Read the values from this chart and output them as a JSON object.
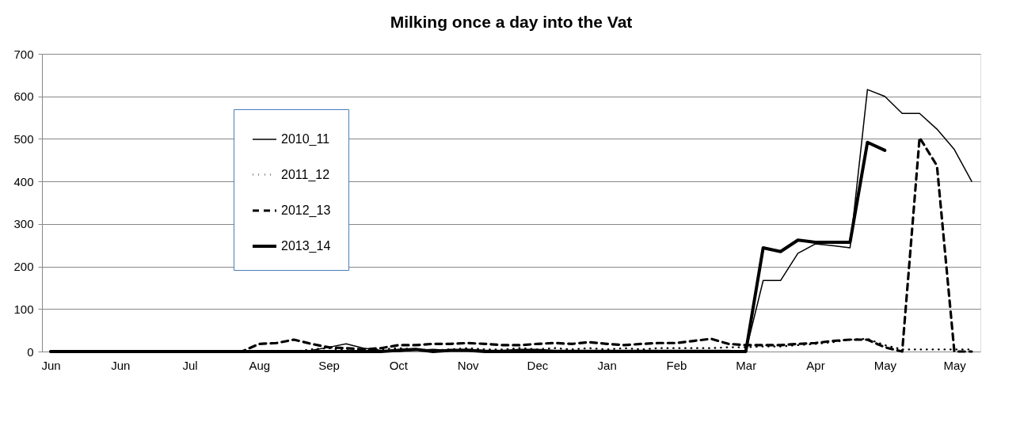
{
  "chart_data": {
    "type": "line",
    "title": "Milking once a day into the Vat",
    "categories": [
      "Jun",
      null,
      null,
      null,
      "Jun",
      null,
      null,
      null,
      "Jul",
      null,
      null,
      null,
      "Aug",
      null,
      null,
      null,
      "Sep",
      null,
      null,
      null,
      "Oct",
      null,
      null,
      null,
      "Nov",
      null,
      null,
      null,
      "Dec",
      null,
      null,
      null,
      "Jan",
      null,
      null,
      null,
      "Feb",
      null,
      null,
      null,
      "Mar",
      null,
      null,
      null,
      "Apr",
      null,
      null,
      null,
      "May",
      null,
      null,
      null,
      "May",
      null
    ],
    "series": [
      {
        "name": "2010_11",
        "color": "#000000",
        "line_style": "solid",
        "values": [
          0,
          0,
          0,
          0,
          0,
          0,
          0,
          0,
          0,
          0,
          0,
          0,
          0,
          0,
          0,
          3,
          10,
          18,
          8,
          3,
          0,
          3,
          5,
          3,
          5,
          3,
          3,
          5,
          5,
          3,
          3,
          3,
          3,
          3,
          3,
          3,
          3,
          3,
          3,
          3,
          0,
          167,
          167,
          231,
          253,
          249,
          244,
          616,
          600,
          560,
          560,
          523,
          475,
          400
        ]
      },
      {
        "name": "2011_12",
        "color": "#000000",
        "line_style": "dotted",
        "values": [
          0,
          0,
          0,
          0,
          0,
          0,
          0,
          0,
          0,
          0,
          0,
          0,
          0,
          0,
          0,
          5,
          8,
          3,
          2,
          5,
          8,
          5,
          3,
          5,
          8,
          5,
          5,
          8,
          5,
          8,
          5,
          8,
          5,
          8,
          5,
          8,
          8,
          8,
          8,
          10,
          10,
          12,
          12,
          15,
          18,
          22,
          28,
          30,
          15,
          5,
          5,
          5,
          5,
          5
        ]
      },
      {
        "name": "2012_13",
        "color": "#000000",
        "line_style": "dashed",
        "values": [
          0,
          0,
          0,
          0,
          0,
          0,
          0,
          0,
          0,
          0,
          0,
          0,
          18,
          20,
          28,
          18,
          10,
          8,
          5,
          8,
          15,
          15,
          18,
          18,
          20,
          18,
          15,
          15,
          18,
          20,
          18,
          22,
          18,
          15,
          18,
          20,
          20,
          25,
          30,
          18,
          15,
          15,
          15,
          18,
          20,
          25,
          28,
          28,
          10,
          0,
          503,
          437,
          0,
          0
        ]
      },
      {
        "name": "2013_14",
        "color": "#000000",
        "line_style": "solid",
        "values": [
          0,
          0,
          0,
          0,
          0,
          0,
          0,
          0,
          0,
          0,
          0,
          0,
          0,
          0,
          0,
          0,
          0,
          0,
          0,
          0,
          3,
          5,
          0,
          3,
          3,
          0,
          0,
          0,
          0,
          0,
          0,
          0,
          0,
          0,
          0,
          0,
          0,
          0,
          0,
          0,
          0,
          244,
          235,
          262,
          257,
          257,
          257,
          492,
          473,
          null,
          null,
          null,
          null,
          null
        ]
      }
    ],
    "ylim": [
      0,
      700
    ],
    "yticks": [
      0,
      100,
      200,
      300,
      400,
      500,
      600,
      700
    ],
    "grid": "y",
    "legend": "left"
  }
}
